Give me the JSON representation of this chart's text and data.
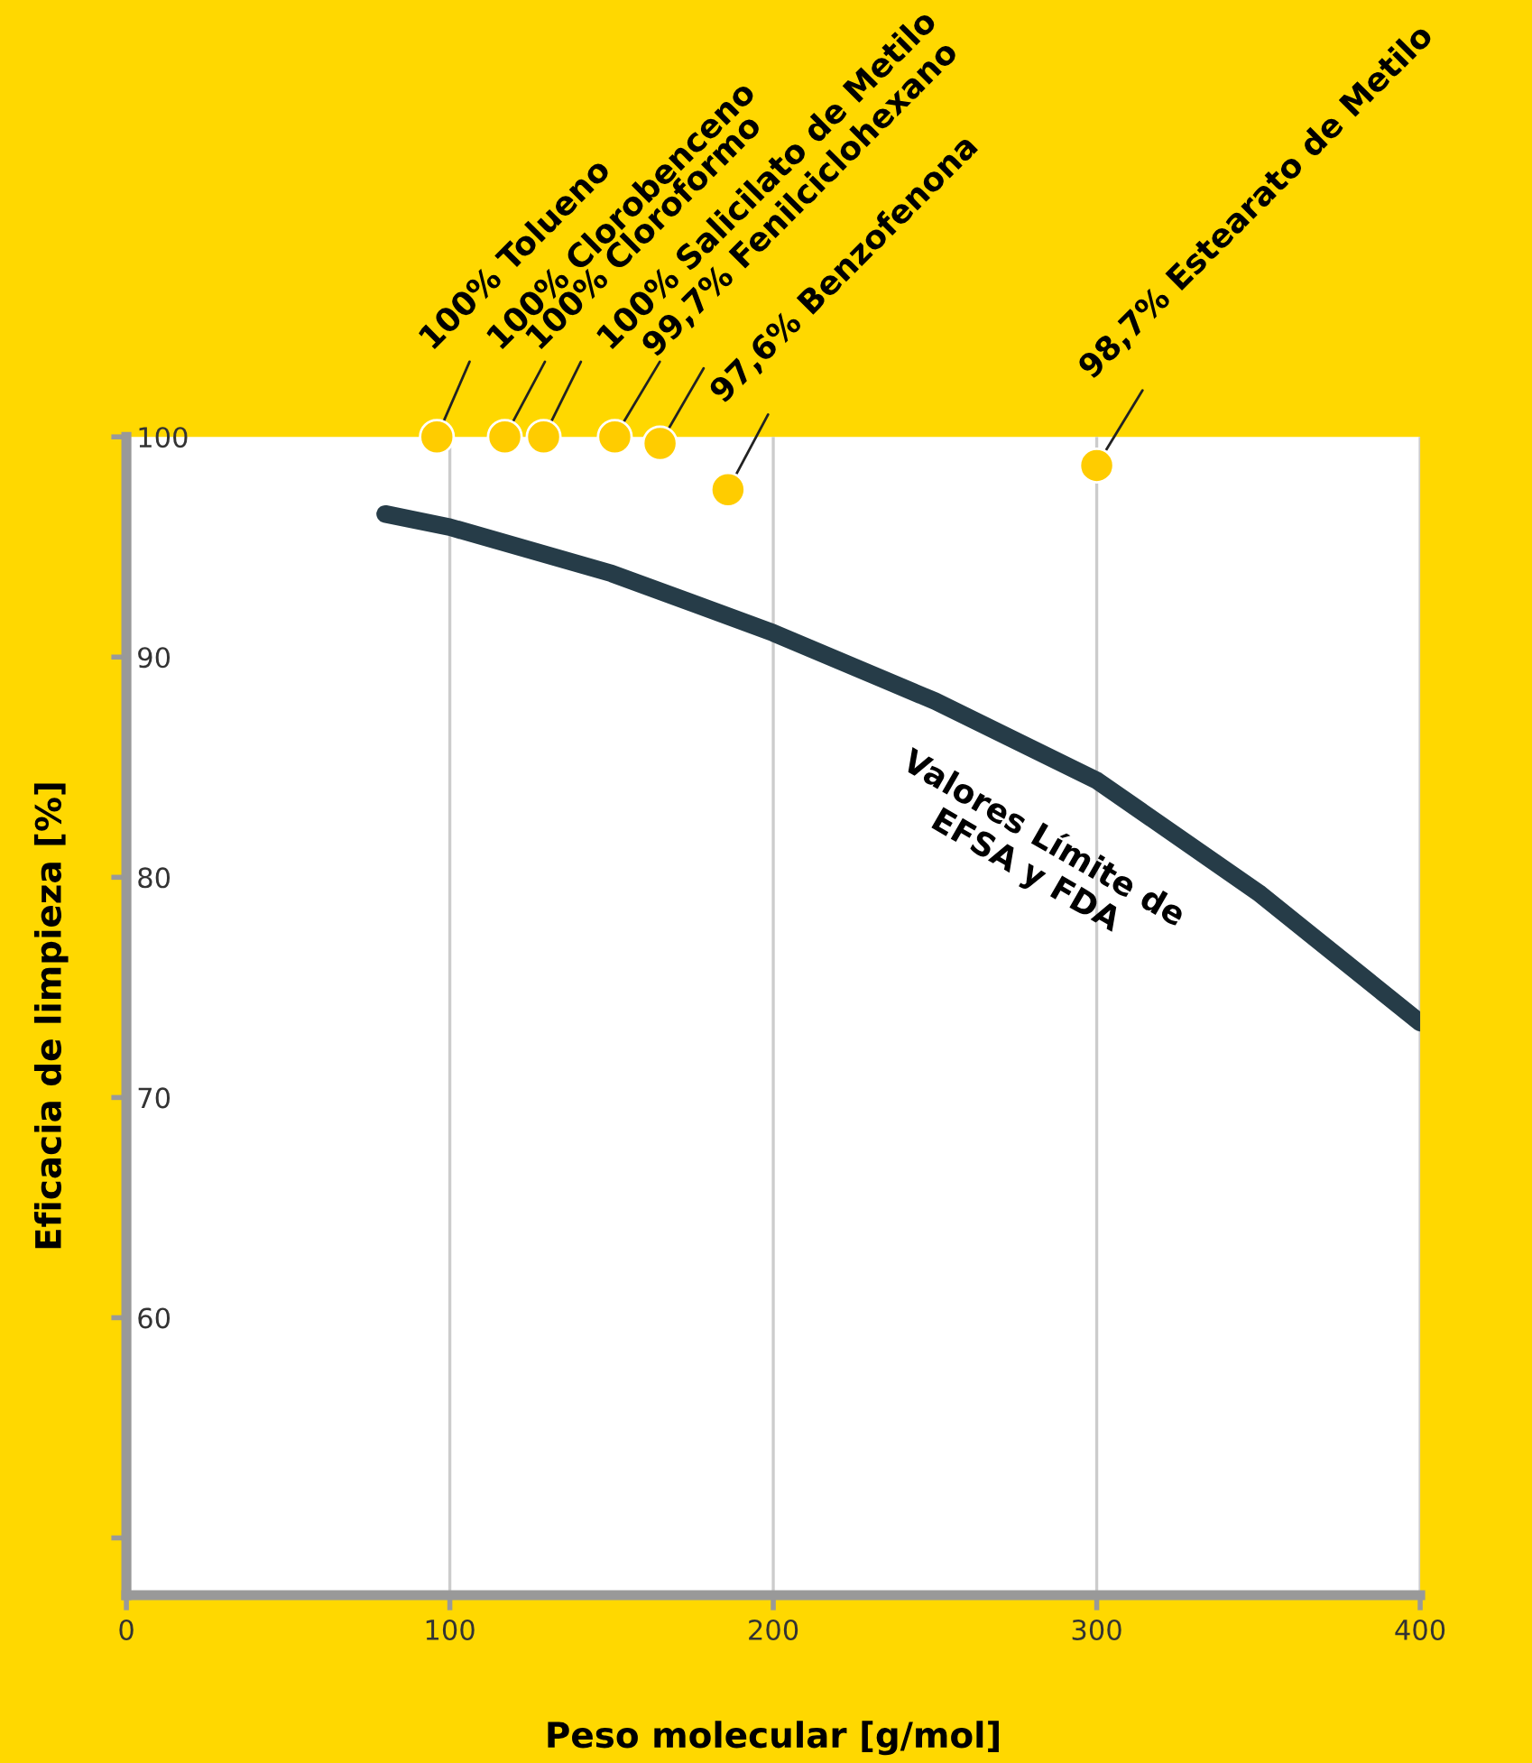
{
  "chart_data": {
    "type": "line",
    "xlabel": "Peso molecular [g/mol]",
    "ylabel": "Eficacia de limpieza [%]",
    "xlim": [
      0,
      400
    ],
    "xticks": [
      0,
      100,
      200,
      300,
      400
    ],
    "ylim": [
      47.4,
      100
    ],
    "yticks": [
      {
        "value": 50,
        "label": null
      },
      60,
      70,
      80,
      90,
      100
    ],
    "grid": "x",
    "series": [
      {
        "name": "Valores Límite de EFSA y FDA",
        "color": "#263c48",
        "x": [
          80,
          100,
          150,
          200,
          250,
          300,
          350,
          400
        ],
        "values": [
          96.5,
          95.9,
          93.8,
          91.1,
          88.0,
          84.4,
          79.3,
          73.4
        ]
      },
      {
        "type": "scatter",
        "color": "#ffcc00",
        "marker": "circle",
        "x": [
          96,
          117,
          129,
          151,
          165,
          186,
          300
        ],
        "values": [
          100,
          100,
          100,
          100,
          99.7,
          97.6,
          98.7
        ],
        "value_labels": [
          "100% Tolueno",
          "100% Clorobenceno",
          "100% Cloroformo",
          "100% Salicilato de Metilo",
          "99,7% Fenilciclohexano",
          "97,6% Benzofenona",
          "98,7% Estearato de Metilo"
        ]
      }
    ]
  }
}
